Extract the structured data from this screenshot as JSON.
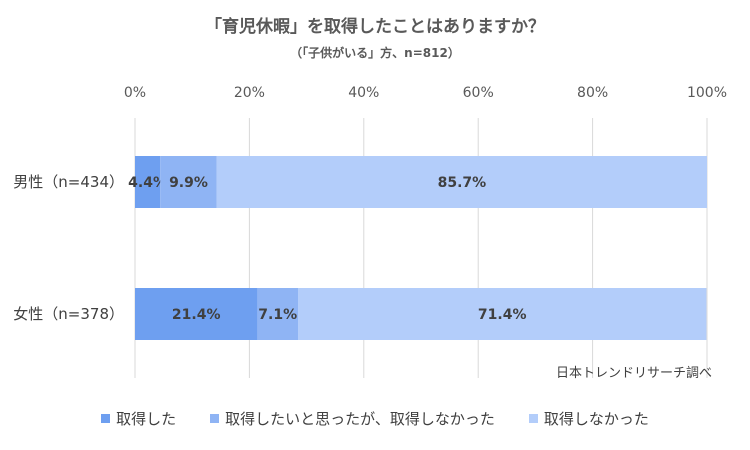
{
  "chart_data": {
    "type": "bar",
    "orientation": "horizontal",
    "stacked": true,
    "title": "「育児休暇」を取得したことはありますか？",
    "subtitle": "（「子供がいる」方、n=812）",
    "categories": [
      "男性（n=434）",
      "女性（n=378）"
    ],
    "series": [
      {
        "name": "取得した",
        "color": "#6e9ff0",
        "values": [
          4.4,
          21.4
        ],
        "labels": [
          "4.4%",
          "21.4%"
        ]
      },
      {
        "name": "取得したいと思ったが、取得しなかった",
        "color": "#8fb4f4",
        "values": [
          9.9,
          7.1
        ],
        "labels": [
          "9.9%",
          "7.1%"
        ]
      },
      {
        "name": "取得しなかった",
        "color": "#b3cdfa",
        "values": [
          85.7,
          71.4
        ],
        "labels": [
          "85.7%",
          "71.4%"
        ]
      }
    ],
    "xlim": [
      0,
      100
    ],
    "xticks": [
      "0%",
      "20%",
      "40%",
      "60%",
      "80%",
      "100%"
    ],
    "grid": true,
    "legend": "bottom",
    "source": "日本トレンドリサーチ調べ"
  }
}
